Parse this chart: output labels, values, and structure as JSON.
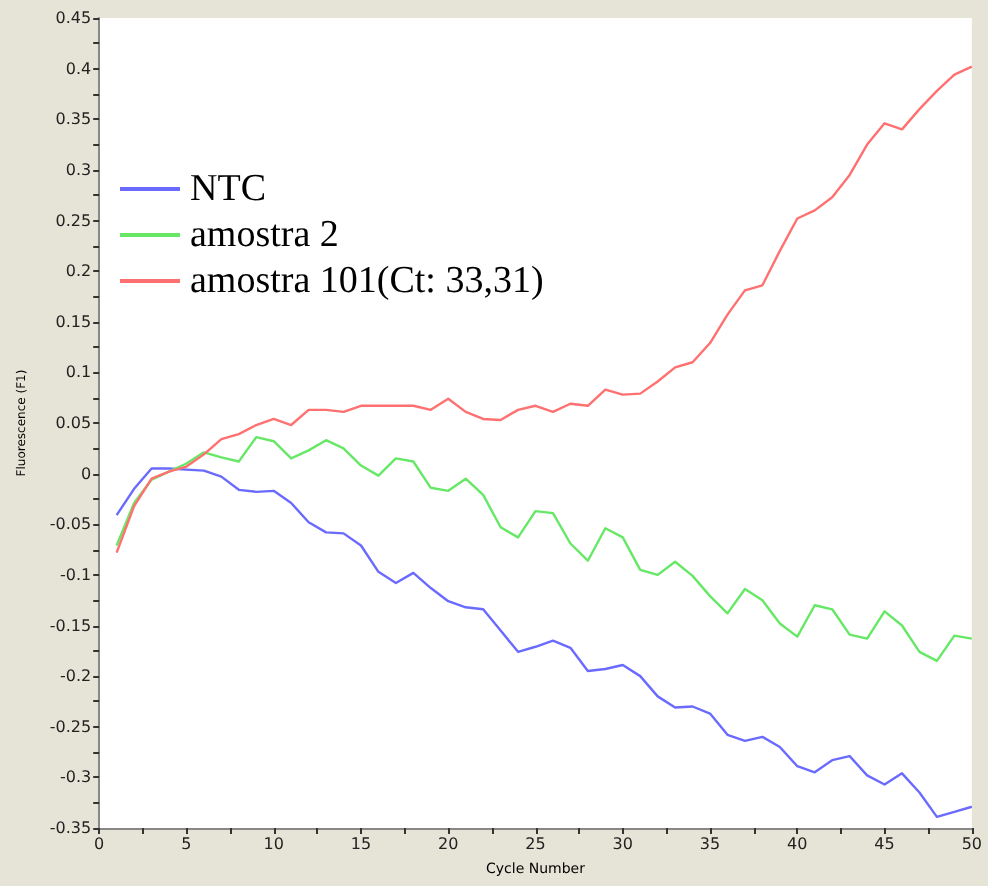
{
  "chart_data": {
    "type": "line",
    "xlabel": "Cycle Number",
    "ylabel": "Fluorescence (F1)",
    "x": [
      1,
      2,
      3,
      4,
      5,
      6,
      7,
      8,
      9,
      10,
      11,
      12,
      13,
      14,
      15,
      16,
      17,
      18,
      19,
      20,
      21,
      22,
      23,
      24,
      25,
      26,
      27,
      28,
      29,
      30,
      31,
      32,
      33,
      34,
      35,
      36,
      37,
      38,
      39,
      40,
      41,
      42,
      43,
      44,
      45,
      46,
      47,
      48,
      49,
      50
    ],
    "series": [
      {
        "name": "NTC",
        "color": "#6a6aff",
        "values": [
          -0.041,
          -0.015,
          0.005,
          0.005,
          0.004,
          0.003,
          -0.003,
          -0.016,
          -0.018,
          -0.017,
          -0.029,
          -0.048,
          -0.058,
          -0.059,
          -0.071,
          -0.097,
          -0.108,
          -0.098,
          -0.113,
          -0.126,
          -0.132,
          -0.134,
          -0.155,
          -0.176,
          -0.171,
          -0.165,
          -0.172,
          -0.195,
          -0.193,
          -0.189,
          -0.2,
          -0.22,
          -0.231,
          -0.23,
          -0.237,
          -0.258,
          -0.264,
          -0.26,
          -0.27,
          -0.289,
          -0.295,
          -0.283,
          -0.279,
          -0.298,
          -0.307,
          -0.296,
          -0.315,
          -0.339,
          -0.334,
          -0.329
        ]
      },
      {
        "name": "amostra 2",
        "color": "#66e866",
        "values": [
          -0.071,
          -0.029,
          -0.006,
          0.002,
          0.01,
          0.021,
          0.016,
          0.012,
          0.036,
          0.032,
          0.015,
          0.023,
          0.033,
          0.025,
          0.008,
          -0.002,
          0.015,
          0.012,
          -0.014,
          -0.017,
          -0.005,
          -0.021,
          -0.053,
          -0.063,
          -0.037,
          -0.039,
          -0.069,
          -0.086,
          -0.054,
          -0.063,
          -0.095,
          -0.1,
          -0.087,
          -0.101,
          -0.121,
          -0.138,
          -0.114,
          -0.125,
          -0.148,
          -0.161,
          -0.13,
          -0.134,
          -0.159,
          -0.163,
          -0.136,
          -0.15,
          -0.176,
          -0.185,
          -0.16,
          -0.163
        ]
      },
      {
        "name": "amostra 101(Ct: 33,31)",
        "color": "#ff7070",
        "values": [
          -0.078,
          -0.032,
          -0.005,
          0.002,
          0.007,
          0.019,
          0.034,
          0.039,
          0.048,
          0.054,
          0.048,
          0.063,
          0.063,
          0.061,
          0.067,
          0.067,
          0.067,
          0.067,
          0.063,
          0.074,
          0.061,
          0.054,
          0.053,
          0.063,
          0.067,
          0.061,
          0.069,
          0.067,
          0.083,
          0.078,
          0.079,
          0.091,
          0.105,
          0.11,
          0.129,
          0.157,
          0.181,
          0.186,
          0.22,
          0.252,
          0.26,
          0.273,
          0.295,
          0.325,
          0.346,
          0.34,
          0.36,
          0.378,
          0.394,
          0.402
        ]
      }
    ],
    "xlim": [
      0,
      50
    ],
    "xticks": [
      0,
      {
        "value": 2.5,
        "label": null
      },
      5,
      {
        "value": 7.5,
        "label": null
      },
      10,
      {
        "value": 12.5,
        "label": null
      },
      15,
      {
        "value": 17.5,
        "label": null
      },
      20,
      {
        "value": 22.5,
        "label": null
      },
      25,
      {
        "value": 27.5,
        "label": null
      },
      30,
      {
        "value": 32.5,
        "label": null
      },
      35,
      {
        "value": 37.5,
        "label": null
      },
      40,
      {
        "value": 42.5,
        "label": null
      },
      45,
      {
        "value": 47.5,
        "label": null
      },
      50
    ],
    "ylim": [
      -0.35,
      0.45
    ],
    "yticks": [
      -0.35,
      {
        "value": -0.325,
        "label": null
      },
      -0.3,
      {
        "value": -0.275,
        "label": null
      },
      -0.25,
      {
        "value": -0.225,
        "label": null
      },
      -0.2,
      {
        "value": -0.175,
        "label": null
      },
      -0.15,
      {
        "value": -0.125,
        "label": null
      },
      -0.1,
      {
        "value": -0.075,
        "label": null
      },
      -0.05,
      {
        "value": -0.025,
        "label": null
      },
      0,
      {
        "value": 0.025,
        "label": null
      },
      0.05,
      {
        "value": 0.075,
        "label": null
      },
      0.1,
      {
        "value": 0.125,
        "label": null
      },
      0.15,
      {
        "value": 0.175,
        "label": null
      },
      0.2,
      {
        "value": 0.225,
        "label": null
      },
      0.25,
      {
        "value": 0.275,
        "label": null
      },
      0.3,
      {
        "value": 0.325,
        "label": null
      },
      0.35,
      {
        "value": 0.375,
        "label": null
      },
      0.4,
      {
        "value": 0.425,
        "label": null
      },
      0.45
    ],
    "grid": false,
    "legend": "top left",
    "marker": "none",
    "line_style": "solid"
  }
}
